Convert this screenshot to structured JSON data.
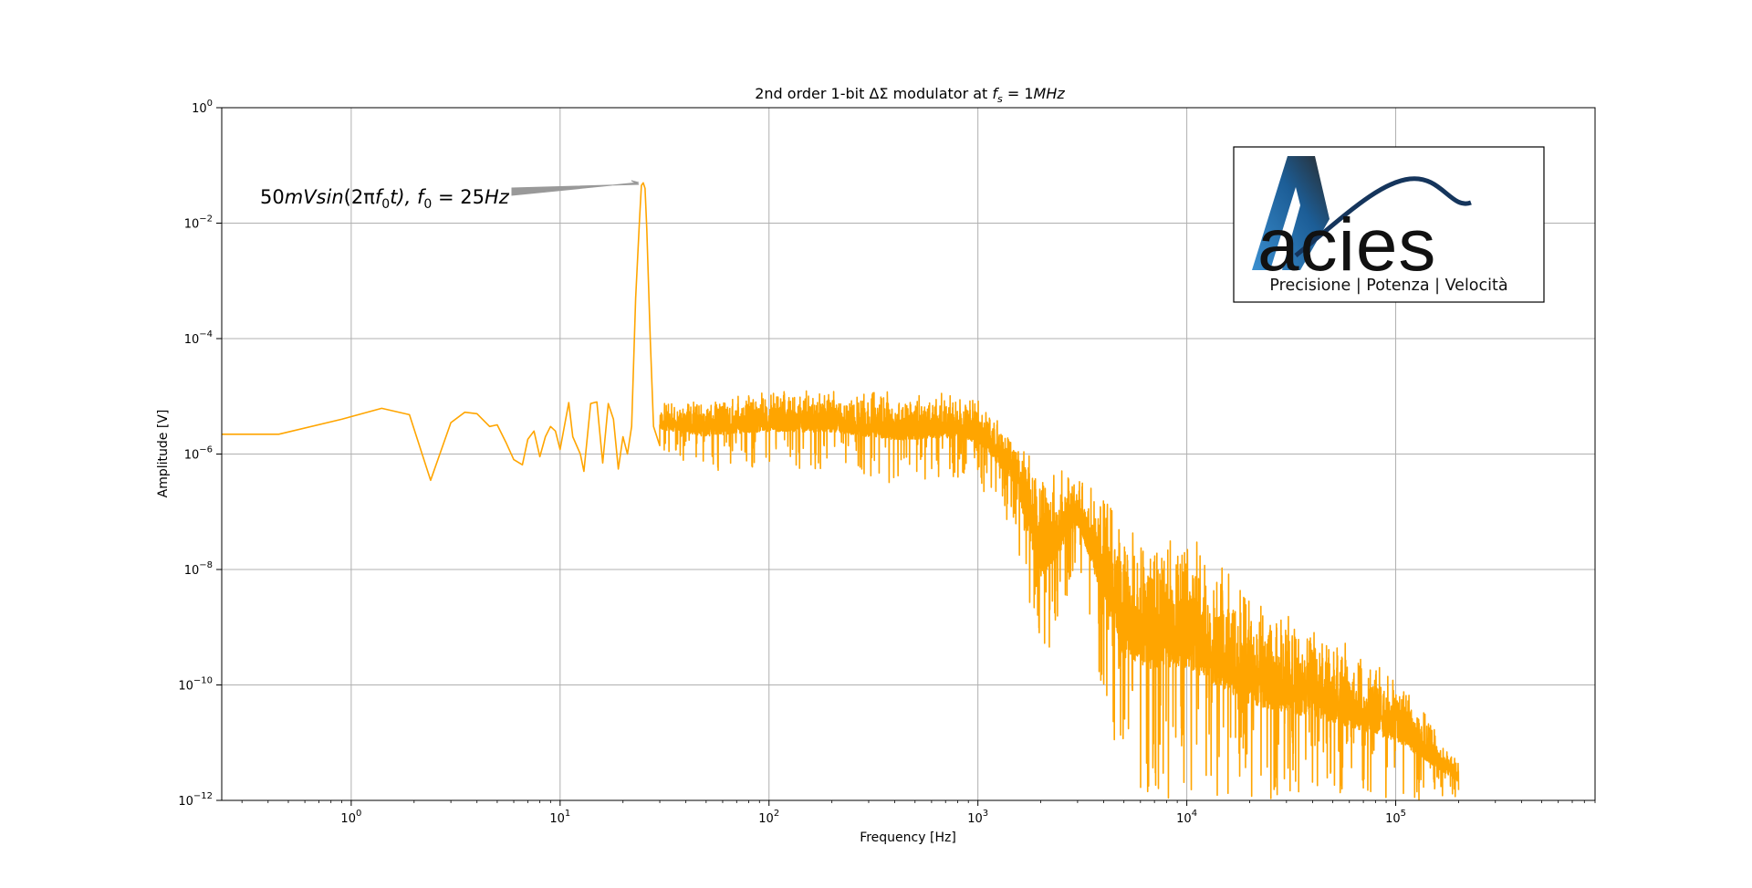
{
  "chart_data": {
    "type": "line",
    "title_main": "2nd order 1-bit ΔΣ modulator at ",
    "title_sym": "f",
    "title_sub": "s",
    "title_rest": " = 1",
    "title_unit": "MHz",
    "xlabel": "Frequency [Hz]",
    "ylabel": "Amplitude [V]",
    "xscale": "log",
    "yscale": "log",
    "xlim": [
      0.24,
      900000
    ],
    "ylim": [
      1e-12,
      1
    ],
    "grid": true,
    "line_color": "#FFA500",
    "x_ticks": [
      {
        "base": "10",
        "exp": "0",
        "value": 1
      },
      {
        "base": "10",
        "exp": "1",
        "value": 10
      },
      {
        "base": "10",
        "exp": "2",
        "value": 100
      },
      {
        "base": "10",
        "exp": "3",
        "value": 1000
      },
      {
        "base": "10",
        "exp": "4",
        "value": 10000
      },
      {
        "base": "10",
        "exp": "5",
        "value": 100000
      }
    ],
    "y_ticks": [
      {
        "base": "10",
        "exp": "0",
        "value": 1
      },
      {
        "base": "10",
        "exp": "−2",
        "value": 0.01
      },
      {
        "base": "10",
        "exp": "−4",
        "value": 0.0001
      },
      {
        "base": "10",
        "exp": "−6",
        "value": 1e-06
      },
      {
        "base": "10",
        "exp": "−8",
        "value": 1e-08
      },
      {
        "base": "10",
        "exp": "−10",
        "value": 1e-10
      },
      {
        "base": "10",
        "exp": "−12",
        "value": 1e-12
      }
    ],
    "series": [
      {
        "x": [
          0.24,
          0.45,
          0.9,
          1.4,
          1.9,
          2.4,
          3.0,
          3.5,
          4.0,
          4.6,
          5.0,
          5.5,
          6.0,
          6.6,
          7.0,
          7.5,
          8.0,
          8.5,
          9.0,
          9.5,
          10.0,
          11.0,
          11.5,
          12.5,
          13.0,
          14.0,
          15.0,
          16.0,
          17.0,
          18.0,
          19.0,
          20.0,
          21.0,
          22.0,
          23.0,
          24.0,
          24.5,
          25.0,
          25.5,
          26.0,
          27.0,
          28.0,
          30.0
        ],
        "y": [
          2.2e-06,
          2.2e-06,
          4e-06,
          6.2e-06,
          4.8e-06,
          3.5e-07,
          3.5e-06,
          5.3e-06,
          5e-06,
          3e-06,
          3.2e-06,
          1.6e-06,
          8e-07,
          6.5e-07,
          1.8e-06,
          2.5e-06,
          9e-07,
          2e-06,
          3e-06,
          2.5e-06,
          1.2e-06,
          7.8e-06,
          2e-06,
          1e-06,
          5e-07,
          7.5e-06,
          8e-06,
          7e-07,
          7.5e-06,
          4e-06,
          5.5e-07,
          2e-06,
          1e-06,
          3e-06,
          0.0005,
          0.012,
          0.045,
          0.05,
          0.04,
          0.008,
          0.0001,
          3e-06,
          1.4e-06
        ],
        "noise_envelope": {
          "x": [
            30,
            50,
            100,
            200,
            400,
            800,
            1000,
            1500,
            2000,
            3000,
            5000,
            7000,
            10000,
            20000,
            50000,
            100000,
            200000
          ],
          "upper": [
            9e-06,
            1.1e-05,
            1.4e-05,
            1.6e-05,
            1.5e-05,
            1.3e-05,
            1.2e-05,
            3e-06,
            1e-06,
            5e-07,
            3e-07,
            1e-07,
            1.3e-07,
            5e-09,
            1e-09,
            2e-10,
            5e-12
          ],
          "lower": [
            1e-06,
            5e-07,
            6e-07,
            5e-07,
            3e-07,
            4e-07,
            3e-07,
            5e-08,
            1e-10,
            1e-08,
            1e-12,
            1e-12,
            1e-12,
            1e-12,
            1e-12,
            1e-12,
            1e-12
          ]
        }
      }
    ],
    "annotation": {
      "pre": "50",
      "text1": "mVsin",
      "text2": "(2π",
      "f": "f",
      "sub0": "0",
      "text3": "t), ",
      "f2": "f",
      "sub1": "0",
      "text4": " = 25",
      "text5": "Hz",
      "arrow_to_x": 25,
      "arrow_to_y": 0.05
    }
  },
  "logo": {
    "word": "acies",
    "tagline": "Precisione | Potenza | Velocità",
    "colors": {
      "blue": "#2a7ab5",
      "dark": "#1a1a1a",
      "navy": "#15355c"
    }
  }
}
